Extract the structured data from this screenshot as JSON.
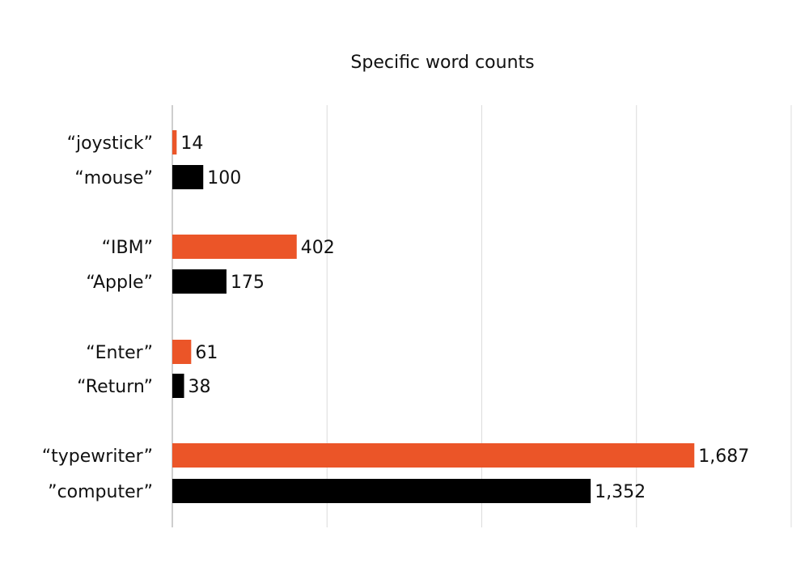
{
  "chart_data": {
    "type": "bar",
    "orientation": "horizontal",
    "title": "Specific word counts",
    "xlabel": "",
    "ylabel": "",
    "xlim": [
      0,
      2000
    ],
    "grid": true,
    "legend": "none",
    "colors": {
      "accent": "#eb5528",
      "dark": "#000000"
    },
    "categories": [
      "“joystick”",
      "“mouse”",
      "“IBM”",
      "“Apple”",
      "“Enter”",
      "“Return”",
      "“typewriter”",
      "”computer”"
    ],
    "values": [
      14,
      100,
      402,
      175,
      61,
      38,
      1687,
      1352
    ],
    "value_labels": [
      "14",
      "100",
      "402",
      "175",
      "61",
      "38",
      "1,687",
      "1,352"
    ],
    "bar_colors": [
      "#eb5528",
      "#000000",
      "#eb5528",
      "#000000",
      "#eb5528",
      "#000000",
      "#eb5528",
      "#000000"
    ]
  }
}
